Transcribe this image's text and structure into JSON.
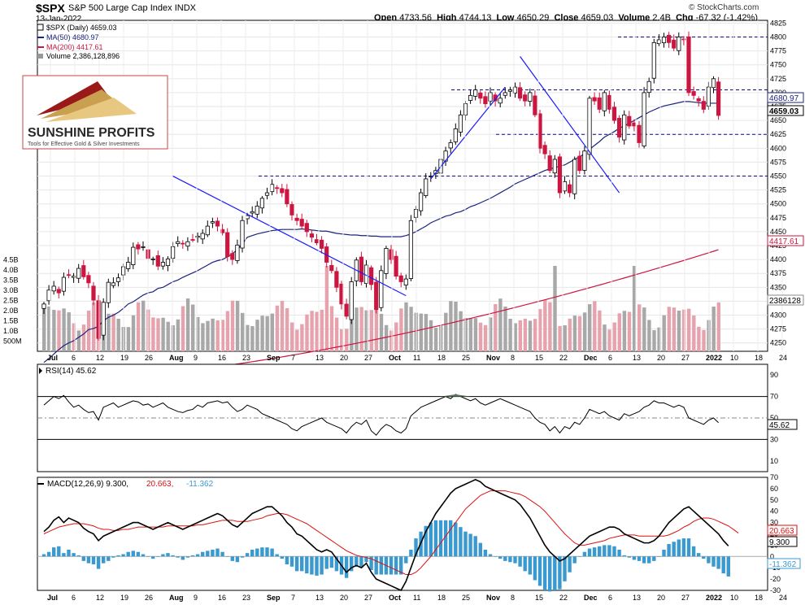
{
  "header": {
    "symbol": "$SPX",
    "name": "S&P 500 Large Cap Index",
    "exchange": "INDX",
    "date": "13-Jan-2022",
    "credit": "© StockCharts.com",
    "quote": {
      "open_label": "Open",
      "open": "4733.56",
      "high_label": "High",
      "high": "4744.13",
      "low_label": "Low",
      "low": "4650.29",
      "close_label": "Close",
      "close": "4659.03",
      "volume_label": "Volume",
      "volume": "2.4B",
      "chg_label": "Chg",
      "chg": "-67.32 (-1.42%)"
    }
  },
  "legend": {
    "price": "$SPX (Daily) 4659.03",
    "ma50": "MA(50) 4680.97",
    "ma200": "MA(200) 4417.61",
    "volume": "Volume 2,386,128,896"
  },
  "logo": {
    "line1": "SUNSHINE PROFITS",
    "line2": "Tools for Effective Gold & Silver Investments"
  },
  "price_badges": {
    "ma50": "4680.97",
    "close": "4659.03",
    "ma200": "4417.61",
    "volume": "2386128"
  },
  "rsi": {
    "label": "RSI(14) 45.62",
    "badge": "45.62"
  },
  "macd": {
    "label_main": "MACD(12,26,9) 9.300,",
    "label_signal": "20.663,",
    "label_hist": "-11.362",
    "badges": [
      "20.663",
      "9.300",
      "-11.362"
    ]
  },
  "colors": {
    "up": "#ffffff",
    "down": "#cc1540",
    "candle_outline": "#000000",
    "ma50": "#1a237e",
    "ma200": "#cc1540",
    "vol_up": "#a8a8a8",
    "vol_down": "#e6a3ae",
    "trendline": "#1a1aff",
    "hline": "#0a0a8a",
    "rsi": "#000000",
    "rsi_fill": "#5a7a5a",
    "macd": "#000000",
    "signal": "#dd1111",
    "hist": "#3a9ad0"
  },
  "chart_data": [
    {
      "type": "candlestick",
      "title": "$SPX S&P 500 Large Cap Index",
      "x_ticks": [
        "Jul",
        "6",
        "12",
        "19",
        "26",
        "Aug",
        "9",
        "16",
        "23",
        "Sep",
        "7",
        "13",
        "20",
        "27",
        "Oct",
        "11",
        "18",
        "25",
        "Nov",
        "8",
        "15",
        "22",
        "Dec",
        "6",
        "13",
        "20",
        "27",
        "2022",
        "10",
        "18",
        "24"
      ],
      "y_ticks": [
        4250,
        4275,
        4300,
        4325,
        4350,
        4375,
        4400,
        4425,
        4450,
        4475,
        4500,
        4525,
        4550,
        4575,
        4600,
        4625,
        4650,
        4675,
        4700,
        4725,
        4750,
        4775,
        4800,
        4825
      ],
      "volume_ticks": [
        "500M",
        "1.0B",
        "1.5B",
        "2.0B",
        "2.5B",
        "3.0B",
        "3.5B",
        "4.0B",
        "4.5B"
      ],
      "ylim": [
        4235,
        4830
      ],
      "horizontal_lines": [
        4800,
        4705,
        4625,
        4550
      ],
      "trendlines": [
        {
          "from": [
            26,
            4550
          ],
          "to": [
            73,
            4335
          ]
        },
        {
          "from": [
            78,
            4545
          ],
          "to": [
            93,
            4710
          ]
        },
        {
          "from": [
            96,
            4765
          ],
          "to": [
            116,
            4520
          ]
        }
      ],
      "closes": [
        4320,
        4345,
        4352,
        4340,
        4368,
        4372,
        4370,
        4384,
        4369,
        4358,
        4327,
        4258,
        4323,
        4359,
        4358,
        4367,
        4387,
        4395,
        4422,
        4419,
        4423,
        4402,
        4401,
        4388,
        4395,
        4401,
        4423,
        4432,
        4429,
        4432,
        4436,
        4442,
        4447,
        4460,
        4468,
        4460,
        4448,
        4405,
        4400,
        4426,
        4470,
        4479,
        4486,
        4496,
        4510,
        4520,
        4535,
        4528,
        4520,
        4500,
        4480,
        4470,
        4460,
        4450,
        4440,
        4430,
        4420,
        4395,
        4380,
        4350,
        4320,
        4298,
        4360,
        4399,
        4360,
        4390,
        4355,
        4310,
        4380,
        4420,
        4400,
        4370,
        4360,
        4365,
        4470,
        4490,
        4520,
        4545,
        4550,
        4560,
        4580,
        4595,
        4610,
        4635,
        4660,
        4680,
        4695,
        4705,
        4690,
        4680,
        4700,
        4685,
        4690,
        4700,
        4705,
        4710,
        4690,
        4685,
        4700,
        4660,
        4600,
        4590,
        4560,
        4580,
        4520,
        4540,
        4520,
        4580,
        4560,
        4595,
        4690,
        4685,
        4670,
        4700,
        4670,
        4650,
        4620,
        4660,
        4640,
        4640,
        4610,
        4700,
        4720,
        4790,
        4795,
        4800,
        4790,
        4780,
        4800,
        4795,
        4700,
        4695,
        4685,
        4670,
        4710,
        4725,
        4659
      ],
      "ma50": [
        4215,
        4222,
        4230,
        4238,
        4245,
        4250,
        4254,
        4260,
        4266,
        4274,
        4276,
        4280,
        4290,
        4296,
        4300,
        4305,
        4312,
        4320,
        4324,
        4330,
        4336,
        4340,
        4342,
        4348,
        4350,
        4355,
        4360,
        4363,
        4368,
        4372,
        4376,
        4380,
        4385,
        4390,
        4395,
        4398,
        4400,
        4405,
        4410,
        4418,
        4428,
        4440,
        4443,
        4446,
        4448,
        4450,
        4452,
        4453,
        4454,
        4454,
        4454,
        4454,
        4455,
        4454,
        4453,
        4452,
        4451,
        4451,
        4449,
        4447,
        4446,
        4445,
        4444,
        4444,
        4443,
        4443,
        4442,
        4442,
        4441,
        4441,
        4441,
        4441,
        4441,
        4443,
        4446,
        4450,
        4455,
        4460,
        4466,
        4470,
        4474,
        4478,
        4480,
        4484,
        4486,
        4490,
        4495,
        4498,
        4502,
        4506,
        4510,
        4515,
        4520,
        4525,
        4530,
        4536,
        4540,
        4544,
        4548,
        4552,
        4556,
        4560,
        4563,
        4565,
        4568,
        4570,
        4575,
        4580,
        4585,
        4590,
        4598,
        4605,
        4612,
        4620,
        4625,
        4630,
        4636,
        4640,
        4645,
        4650,
        4655,
        4660,
        4665,
        4669,
        4673,
        4676,
        4678,
        4680,
        4682,
        4684,
        4684,
        4683,
        4682,
        4681,
        4681,
        4681,
        4681
      ],
      "ma200_range": [
        4180,
        4417.61
      ],
      "volume_last": 2386128896,
      "volume_spikes": {
        "Sep 17": 4.2,
        "Nov 19": 4.1,
        "Dec 17": 4.4
      }
    },
    {
      "type": "line",
      "title": "RSI(14)",
      "y_ticks": [
        10,
        30,
        50,
        70,
        90
      ],
      "overbought": 70,
      "oversold": 30,
      "last": 45.62,
      "values": [
        62,
        66,
        70,
        68,
        71,
        65,
        60,
        62,
        58,
        55,
        56,
        48,
        60,
        62,
        64,
        60,
        62,
        64,
        66,
        65,
        62,
        63,
        60,
        62,
        64,
        60,
        58,
        56,
        55,
        57,
        58,
        62,
        60,
        64,
        65,
        66,
        64,
        65,
        60,
        56,
        58,
        62,
        60,
        58,
        54,
        52,
        50,
        48,
        46,
        44,
        40,
        38,
        42,
        44,
        46,
        48,
        50,
        46,
        44,
        42,
        40,
        36,
        42,
        46,
        44,
        48,
        38,
        34,
        40,
        44,
        42,
        38,
        36,
        40,
        52,
        56,
        60,
        62,
        64,
        66,
        68,
        70,
        68,
        72,
        70,
        68,
        66,
        68,
        64,
        62,
        64,
        66,
        68,
        66,
        64,
        62,
        60,
        58,
        56,
        50,
        46,
        44,
        38,
        42,
        36,
        42,
        40,
        46,
        44,
        50,
        58,
        56,
        54,
        56,
        52,
        50,
        48,
        54,
        52,
        54,
        56,
        60,
        62,
        66,
        64,
        64,
        62,
        60,
        62,
        60,
        50,
        48,
        46,
        44,
        48,
        50,
        45.62
      ]
    },
    {
      "type": "line",
      "title": "MACD(12,26,9)",
      "y_ticks": [
        -30,
        -20,
        -10,
        0,
        10,
        20,
        30,
        40,
        50,
        60,
        70
      ],
      "series": [
        {
          "name": "MACD",
          "last": 9.3
        },
        {
          "name": "Signal",
          "last": 20.663
        },
        {
          "name": "Histogram",
          "last": -11.362
        }
      ],
      "macd": [
        22,
        26,
        32,
        35,
        30,
        34,
        32,
        30,
        25,
        22,
        20,
        14,
        18,
        20,
        22,
        24,
        26,
        28,
        30,
        30,
        28,
        26,
        24,
        26,
        28,
        30,
        28,
        26,
        24,
        26,
        28,
        30,
        32,
        34,
        36,
        38,
        36,
        32,
        28,
        26,
        30,
        34,
        38,
        40,
        42,
        44,
        44,
        40,
        36,
        30,
        26,
        20,
        18,
        14,
        10,
        6,
        4,
        6,
        4,
        -2,
        -8,
        -14,
        -10,
        -8,
        -10,
        -6,
        -14,
        -20,
        -22,
        -24,
        -26,
        -28,
        -30,
        -22,
        -10,
        2,
        12,
        22,
        30,
        38,
        44,
        50,
        56,
        60,
        62,
        64,
        66,
        68,
        66,
        62,
        60,
        58,
        56,
        54,
        52,
        50,
        46,
        40,
        34,
        26,
        18,
        10,
        4,
        0,
        -4,
        -2,
        2,
        6,
        10,
        14,
        18,
        20,
        22,
        24,
        26,
        26,
        24,
        20,
        18,
        16,
        14,
        12,
        12,
        14,
        18,
        24,
        30,
        34,
        38,
        42,
        44,
        40,
        36,
        32,
        28,
        24,
        20,
        14,
        9.3
      ],
      "signal": [
        20,
        22,
        24,
        26,
        27,
        28,
        29,
        29,
        29,
        28,
        27,
        25,
        24,
        24,
        23,
        23,
        24,
        24,
        25,
        26,
        26,
        26,
        26,
        26,
        26,
        27,
        27,
        27,
        27,
        27,
        27,
        28,
        28,
        29,
        30,
        31,
        32,
        32,
        32,
        31,
        31,
        31,
        32,
        33,
        34,
        36,
        37,
        38,
        38,
        37,
        35,
        33,
        31,
        29,
        26,
        23,
        20,
        17,
        14,
        11,
        8,
        5,
        3,
        1,
        0,
        -1,
        -2,
        -4,
        -6,
        -8,
        -10,
        -12,
        -14,
        -16,
        -16,
        -14,
        -10,
        -5,
        0,
        6,
        12,
        18,
        24,
        30,
        36,
        42,
        46,
        50,
        54,
        56,
        58,
        58,
        58,
        58,
        57,
        56,
        55,
        53,
        50,
        47,
        44,
        40,
        35,
        30,
        25,
        20,
        16,
        12,
        10,
        10,
        11,
        12,
        13,
        14,
        16,
        17,
        18,
        19,
        19,
        19,
        18,
        18,
        18,
        18,
        18,
        18,
        19,
        21,
        23,
        26,
        28,
        31,
        33,
        34,
        34,
        33,
        31,
        29,
        27,
        24,
        20.663
      ]
    }
  ]
}
